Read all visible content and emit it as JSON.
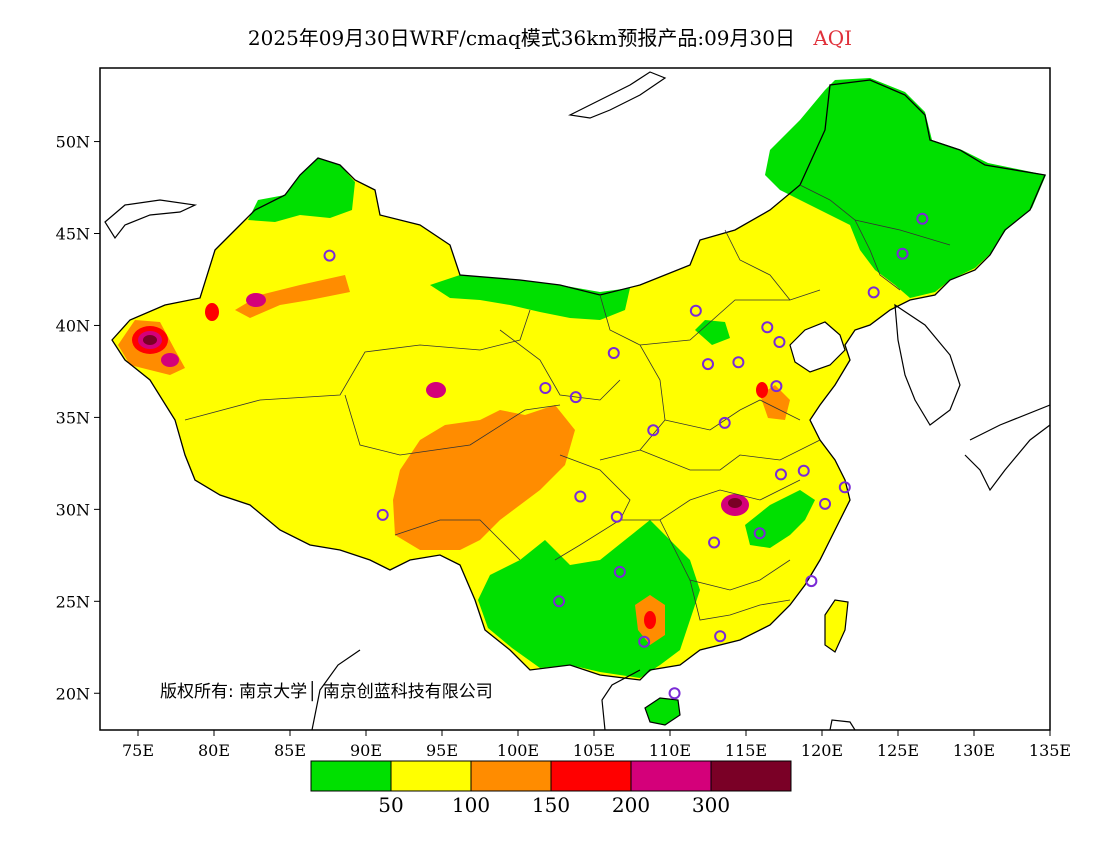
{
  "title": {
    "main": "2025年09月30日WRF/cmaq模式36km预报产品:09月30日",
    "variable": "AQI"
  },
  "axes": {
    "x_ticks": [
      "75E",
      "80E",
      "85E",
      "90E",
      "95E",
      "100E",
      "105E",
      "110E",
      "115E",
      "120E",
      "125E",
      "130E",
      "135E"
    ],
    "y_ticks": [
      "20N",
      "25N",
      "30N",
      "35N",
      "40N",
      "45N",
      "50N"
    ]
  },
  "copyright": "版权所有: 南京大学│ 南京创蓝科技有限公司",
  "legend": {
    "colors": [
      "#00e000",
      "#ffff00",
      "#ff8c00",
      "#ff0000",
      "#d4007a",
      "#7a0026"
    ],
    "labels": [
      "50",
      "100",
      "150",
      "200",
      "300"
    ]
  },
  "colors": {
    "good": "#00e000",
    "moderate": "#ffff00",
    "sensitive": "#ff8c00",
    "unhealthy": "#ff0000",
    "very_unhealthy": "#d4007a",
    "hazardous": "#7a0026",
    "station_marker": "#7a2ad6"
  },
  "stations": [
    {
      "lon": 87.6,
      "lat": 43.8
    },
    {
      "lon": 101.8,
      "lat": 36.6
    },
    {
      "lon": 103.8,
      "lat": 36.1
    },
    {
      "lon": 106.3,
      "lat": 38.5
    },
    {
      "lon": 111.7,
      "lat": 40.8
    },
    {
      "lon": 116.4,
      "lat": 39.9
    },
    {
      "lon": 117.2,
      "lat": 39.1
    },
    {
      "lon": 112.5,
      "lat": 37.9
    },
    {
      "lon": 114.5,
      "lat": 38.0
    },
    {
      "lon": 117.0,
      "lat": 36.7
    },
    {
      "lon": 113.6,
      "lat": 34.7
    },
    {
      "lon": 108.9,
      "lat": 34.3
    },
    {
      "lon": 104.1,
      "lat": 30.7
    },
    {
      "lon": 106.5,
      "lat": 29.6
    },
    {
      "lon": 91.1,
      "lat": 29.7
    },
    {
      "lon": 106.7,
      "lat": 26.6
    },
    {
      "lon": 102.7,
      "lat": 25.0
    },
    {
      "lon": 108.3,
      "lat": 22.8
    },
    {
      "lon": 110.3,
      "lat": 20.0
    },
    {
      "lon": 113.3,
      "lat": 23.1
    },
    {
      "lon": 112.9,
      "lat": 28.2
    },
    {
      "lon": 115.9,
      "lat": 28.7
    },
    {
      "lon": 117.3,
      "lat": 31.9
    },
    {
      "lon": 118.8,
      "lat": 32.1
    },
    {
      "lon": 120.2,
      "lat": 30.3
    },
    {
      "lon": 121.5,
      "lat": 31.2
    },
    {
      "lon": 119.3,
      "lat": 26.1
    },
    {
      "lon": 123.4,
      "lat": 41.8
    },
    {
      "lon": 125.3,
      "lat": 43.9
    },
    {
      "lon": 126.6,
      "lat": 45.8
    }
  ]
}
